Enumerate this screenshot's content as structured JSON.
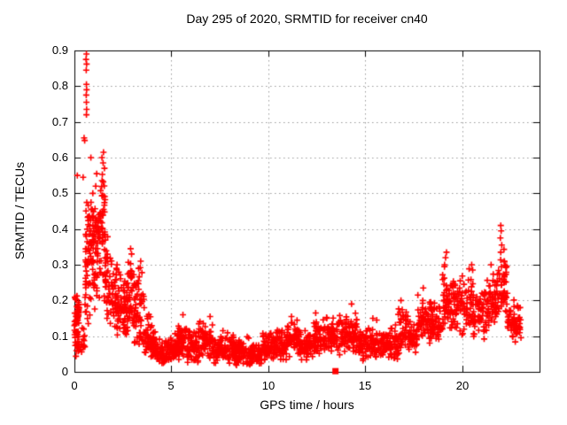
{
  "chart_data": {
    "type": "scatter",
    "title": "Day 295 of 2020, SRMTID for receiver cn40",
    "xlabel": "GPS time / hours",
    "ylabel": "SRMTID / TECUs",
    "xlim": [
      0,
      24
    ],
    "ylim": [
      0,
      0.9
    ],
    "xticks": [
      0,
      5,
      10,
      15,
      20
    ],
    "yticks": [
      0,
      0.1,
      0.2,
      0.3,
      0.4,
      0.5,
      0.6,
      0.7,
      0.8,
      0.9
    ],
    "grid": {
      "show": true,
      "style": "dotted",
      "color": "#999999"
    },
    "axis_color": "#000000",
    "text_color": "#000000",
    "legend": null,
    "series": [
      {
        "name": "SRMTID",
        "marker": "plus",
        "color": "#ff0000",
        "marker_size": 7,
        "clusters": [
          [
            0.0,
            0.25,
            55,
            0.05,
            0.23,
            0.17
          ],
          [
            0.05,
            0.3,
            12,
            0.04,
            0.1,
            0.07
          ],
          [
            0.3,
            0.55,
            14,
            0.05,
            0.13,
            0.08
          ],
          [
            0.55,
            0.72,
            40,
            0.06,
            0.52,
            0.3
          ],
          [
            0.75,
            1.0,
            45,
            0.1,
            0.52,
            0.38
          ],
          [
            1.0,
            1.35,
            55,
            0.1,
            0.5,
            0.4
          ],
          [
            1.35,
            1.6,
            40,
            0.12,
            0.58,
            0.42
          ],
          [
            1.6,
            1.95,
            40,
            0.12,
            0.38,
            0.24
          ],
          [
            1.95,
            2.3,
            45,
            0.1,
            0.3,
            0.2
          ],
          [
            2.3,
            2.7,
            45,
            0.08,
            0.28,
            0.17
          ],
          [
            2.7,
            3.0,
            40,
            0.08,
            0.33,
            0.18
          ],
          [
            3.0,
            3.3,
            35,
            0.06,
            0.3,
            0.14
          ],
          [
            3.3,
            3.6,
            35,
            0.05,
            0.31,
            0.12
          ],
          [
            3.6,
            4.0,
            40,
            0.03,
            0.18,
            0.09
          ],
          [
            4.0,
            4.4,
            40,
            0.02,
            0.12,
            0.06
          ],
          [
            4.4,
            4.75,
            40,
            0.01,
            0.09,
            0.04
          ],
          [
            4.75,
            5.3,
            55,
            0.02,
            0.11,
            0.06
          ],
          [
            5.3,
            5.8,
            55,
            0.03,
            0.14,
            0.08
          ],
          [
            5.8,
            6.4,
            60,
            0.02,
            0.12,
            0.07
          ],
          [
            6.4,
            7.2,
            75,
            0.03,
            0.15,
            0.08
          ],
          [
            7.2,
            8.2,
            90,
            0.02,
            0.12,
            0.06
          ],
          [
            8.2,
            9.0,
            80,
            0.015,
            0.1,
            0.05
          ],
          [
            9.0,
            9.7,
            70,
            0.015,
            0.09,
            0.045
          ],
          [
            9.7,
            10.3,
            60,
            0.02,
            0.12,
            0.06
          ],
          [
            10.3,
            11.0,
            65,
            0.03,
            0.13,
            0.07
          ],
          [
            11.0,
            11.6,
            60,
            0.04,
            0.15,
            0.09
          ],
          [
            11.6,
            12.3,
            65,
            0.03,
            0.12,
            0.07
          ],
          [
            12.3,
            13.0,
            65,
            0.04,
            0.15,
            0.09
          ],
          [
            13.0,
            13.6,
            55,
            0.05,
            0.17,
            0.1
          ],
          [
            13.6,
            14.6,
            90,
            0.04,
            0.17,
            0.1
          ],
          [
            14.6,
            15.4,
            75,
            0.03,
            0.13,
            0.07
          ],
          [
            15.4,
            16.3,
            80,
            0.03,
            0.12,
            0.07
          ],
          [
            16.3,
            16.7,
            35,
            0.03,
            0.14,
            0.08
          ],
          [
            16.7,
            17.2,
            45,
            0.04,
            0.2,
            0.11
          ],
          [
            17.2,
            17.7,
            45,
            0.05,
            0.16,
            0.1
          ],
          [
            17.7,
            18.4,
            60,
            0.07,
            0.23,
            0.14
          ],
          [
            18.4,
            19.0,
            55,
            0.08,
            0.2,
            0.13
          ],
          [
            19.0,
            19.35,
            40,
            0.1,
            0.32,
            0.18
          ],
          [
            19.35,
            20.0,
            60,
            0.1,
            0.28,
            0.19
          ],
          [
            20.0,
            20.6,
            50,
            0.09,
            0.3,
            0.16
          ],
          [
            20.6,
            21.3,
            55,
            0.08,
            0.25,
            0.15
          ],
          [
            21.3,
            21.8,
            50,
            0.12,
            0.3,
            0.19
          ],
          [
            21.8,
            22.35,
            55,
            0.12,
            0.35,
            0.21
          ],
          [
            22.35,
            22.75,
            35,
            0.08,
            0.22,
            0.14
          ],
          [
            22.75,
            23.05,
            25,
            0.08,
            0.2,
            0.13
          ]
        ],
        "outliers": [
          [
            0.62,
            0.89
          ],
          [
            0.6,
            0.875
          ],
          [
            0.63,
            0.862
          ],
          [
            0.61,
            0.845
          ],
          [
            0.62,
            0.805
          ],
          [
            0.63,
            0.79
          ],
          [
            0.61,
            0.775
          ],
          [
            0.62,
            0.755
          ],
          [
            0.63,
            0.735
          ],
          [
            0.62,
            0.72
          ],
          [
            0.5,
            0.655
          ],
          [
            0.53,
            0.648
          ],
          [
            0.85,
            0.6
          ],
          [
            0.15,
            0.55
          ],
          [
            0.45,
            0.545
          ],
          [
            1.15,
            0.555
          ],
          [
            1.42,
            0.6
          ],
          [
            1.5,
            0.615
          ],
          [
            1.48,
            0.585
          ],
          [
            1.55,
            0.57
          ],
          [
            1.1,
            0.52
          ],
          [
            0.95,
            0.5
          ],
          [
            2.9,
            0.345
          ],
          [
            2.95,
            0.33
          ],
          [
            3.42,
            0.31
          ],
          [
            2.2,
            0.3
          ],
          [
            5.6,
            0.16
          ],
          [
            7.0,
            0.155
          ],
          [
            11.2,
            0.155
          ],
          [
            12.45,
            0.165
          ],
          [
            14.3,
            0.19
          ],
          [
            15.4,
            0.15
          ],
          [
            15.6,
            0.145
          ],
          [
            16.85,
            0.2
          ],
          [
            18.0,
            0.235
          ],
          [
            19.15,
            0.32
          ],
          [
            19.2,
            0.335
          ],
          [
            19.1,
            0.3
          ],
          [
            20.5,
            0.3
          ],
          [
            20.55,
            0.285
          ],
          [
            21.5,
            0.3
          ],
          [
            22.0,
            0.41
          ],
          [
            22.02,
            0.395
          ],
          [
            21.98,
            0.375
          ],
          [
            22.05,
            0.355
          ],
          [
            22.0,
            0.335
          ],
          [
            22.6,
            0.1
          ],
          [
            23.0,
            0.18
          ]
        ]
      }
    ],
    "special_points": [
      {
        "x": 13.47,
        "y": 0.002,
        "marker": "filled-square",
        "color": "#ff0000",
        "size": 7
      }
    ]
  }
}
